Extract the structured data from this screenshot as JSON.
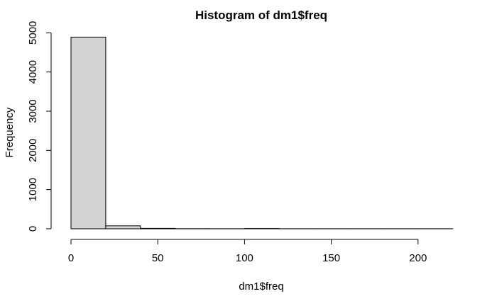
{
  "chart_data": {
    "type": "bar",
    "title": "Histogram of dm1$freq",
    "xlabel": "dm1$freq",
    "ylabel": "Frequency",
    "bins": [
      {
        "x0": 0,
        "x1": 20,
        "count": 4890
      },
      {
        "x0": 20,
        "x1": 40,
        "count": 75
      },
      {
        "x0": 40,
        "x1": 60,
        "count": 10
      },
      {
        "x0": 60,
        "x1": 80,
        "count": 3
      },
      {
        "x0": 80,
        "x1": 100,
        "count": 2
      },
      {
        "x0": 100,
        "x1": 120,
        "count": 8
      },
      {
        "x0": 120,
        "x1": 140,
        "count": 1
      },
      {
        "x0": 140,
        "x1": 160,
        "count": 1
      },
      {
        "x0": 160,
        "x1": 180,
        "count": 1
      },
      {
        "x0": 180,
        "x1": 200,
        "count": 1
      },
      {
        "x0": 200,
        "x1": 220,
        "count": 1
      }
    ],
    "xticks": [
      0,
      50,
      100,
      150,
      200
    ],
    "yticks": [
      0,
      1000,
      2000,
      3000,
      4000,
      5000
    ],
    "xlim": [
      0,
      220
    ],
    "ylim": [
      0,
      5000
    ],
    "grid": false,
    "bar_fill": "#d3d3d3",
    "bar_stroke": "#000000"
  }
}
